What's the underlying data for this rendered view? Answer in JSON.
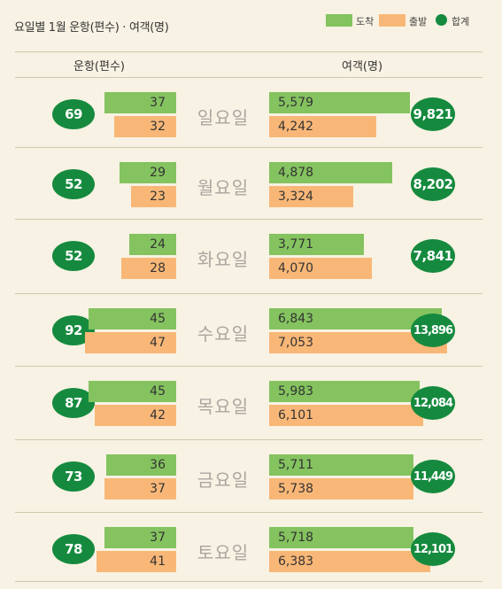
{
  "title": "요일별 1월 운항(편수) · 여객(명)",
  "legend": {
    "arrival": "도착",
    "departure": "출발",
    "total": "합계"
  },
  "headers": {
    "flights": "운항(편수)",
    "passengers": "여객(명)"
  },
  "colors": {
    "arrival": "#84c35f",
    "departure": "#f9b777",
    "total": "#158a3e",
    "background": "#f7f2e3"
  },
  "chart_data": {
    "type": "bar",
    "title": "요일별 1월 운항(편수) · 여객(명)",
    "categories": [
      "일요일",
      "월요일",
      "화요일",
      "수요일",
      "목요일",
      "금요일",
      "토요일"
    ],
    "flights": {
      "label": "운항(편수)",
      "series": [
        {
          "name": "도착",
          "values": [
            37,
            29,
            24,
            45,
            45,
            36,
            37
          ]
        },
        {
          "name": "출발",
          "values": [
            32,
            23,
            28,
            47,
            42,
            37,
            41
          ]
        }
      ],
      "total": [
        69,
        52,
        52,
        92,
        87,
        73,
        78
      ]
    },
    "passengers": {
      "label": "여객(명)",
      "series": [
        {
          "name": "도착",
          "values": [
            5579,
            4878,
            3771,
            6843,
            5983,
            5711,
            5718
          ]
        },
        {
          "name": "출발",
          "values": [
            4242,
            3324,
            4070,
            7053,
            6101,
            5738,
            6383
          ]
        }
      ],
      "total": [
        9821,
        8202,
        7841,
        13896,
        12084,
        11449,
        12101
      ]
    }
  }
}
